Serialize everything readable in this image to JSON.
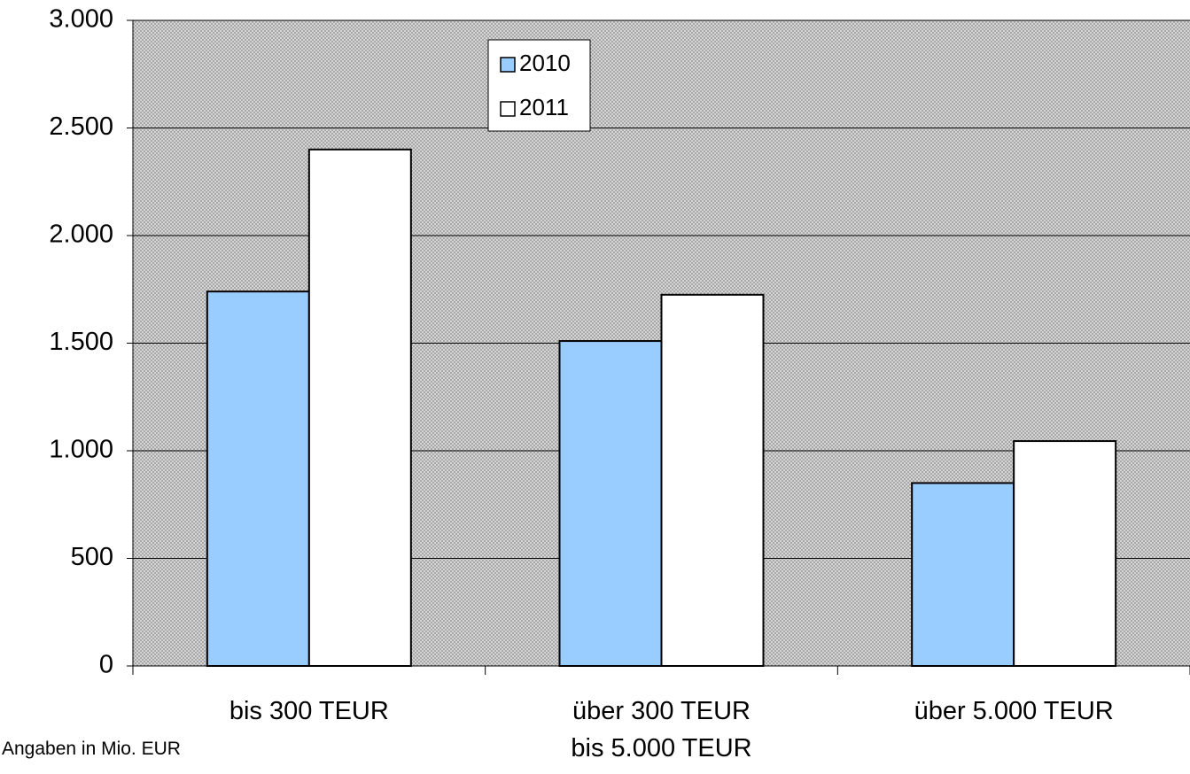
{
  "chart_data": {
    "type": "bar",
    "categories": [
      "bis 300 TEUR",
      "über 300 TEUR\nbis 5.000 TEUR",
      "über 5.000 TEUR"
    ],
    "series": [
      {
        "name": "2010",
        "color": "#99ccff",
        "values": [
          1740,
          1510,
          850
        ]
      },
      {
        "name": "2011",
        "color": "#ffffff",
        "values": [
          2400,
          1725,
          1045
        ]
      }
    ],
    "ylim": [
      0,
      3000
    ],
    "yticks": [
      0,
      500,
      {
        "value": 1000,
        "label": "1.000"
      },
      {
        "value": 1500,
        "label": "1.500"
      },
      {
        "value": 2000,
        "label": "2.000"
      },
      {
        "value": 2500,
        "label": "2.500"
      },
      {
        "value": 3000,
        "label": "3.000"
      }
    ],
    "grid": true,
    "note": "Angaben in Mio. EUR"
  }
}
